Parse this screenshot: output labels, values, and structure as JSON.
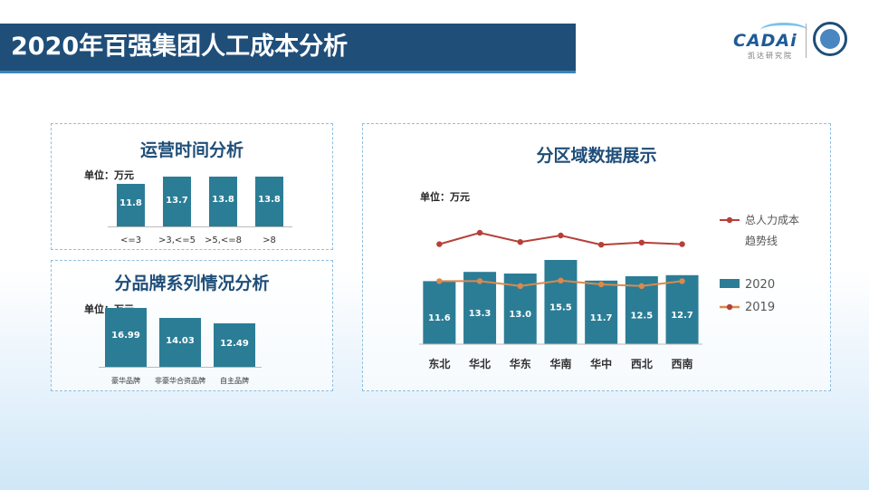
{
  "header": {
    "title": "2020年百强集团人工成本分析"
  },
  "logo": {
    "brand": "CADAi",
    "sub": "凯达研究院"
  },
  "colors": {
    "bar": "#2b7d96",
    "line_total": "#b5403a",
    "line_2019": "#d98a4e",
    "title_bg": "#1f4e79"
  },
  "chart_data": [
    {
      "type": "bar",
      "title": "运营时间分析",
      "unit_label": "单位：万元",
      "categories": [
        "<=3",
        ">3,<=5",
        ">5,<=8",
        ">8"
      ],
      "values": [
        11.8,
        13.7,
        13.8,
        13.8
      ],
      "value_labels": [
        "11.8",
        "13.7",
        "13.8",
        "13.8"
      ],
      "ylim": [
        0,
        16
      ]
    },
    {
      "type": "bar",
      "title": "分品牌系列情况分析",
      "unit_label": "单位：万元",
      "categories": [
        "豪华品牌",
        "非豪华合资品牌",
        "自主品牌"
      ],
      "values": [
        16.99,
        14.03,
        12.49
      ],
      "value_labels": [
        "16.99",
        "14.03",
        "12.49"
      ],
      "ylim": [
        0,
        18
      ]
    },
    {
      "type": "bar",
      "title": "分区域数据展示",
      "unit_label": "单位：万元",
      "categories": [
        "东北",
        "华北",
        "华东",
        "华南",
        "华中",
        "西北",
        "西南"
      ],
      "series": [
        {
          "name": "2020",
          "type": "bar",
          "values": [
            11.6,
            13.3,
            13.0,
            15.5,
            11.7,
            12.5,
            12.7
          ],
          "value_labels": [
            "11.6",
            "13.3",
            "13.0",
            "15.5",
            "11.7",
            "12.5",
            "12.7"
          ]
        },
        {
          "name": "2019",
          "type": "line",
          "values": [
            11.6,
            11.6,
            10.7,
            11.7,
            11.0,
            10.7,
            11.6
          ]
        },
        {
          "name": "总人力成本趋势线",
          "type": "line",
          "values": [
            18.4,
            20.5,
            18.8,
            20.0,
            18.3,
            18.7,
            18.4
          ]
        }
      ],
      "legend": {
        "position": "right",
        "entries": [
          "总人力成本",
          "趋势线",
          "2020",
          "2019"
        ]
      },
      "ylim": [
        0,
        25
      ]
    }
  ]
}
